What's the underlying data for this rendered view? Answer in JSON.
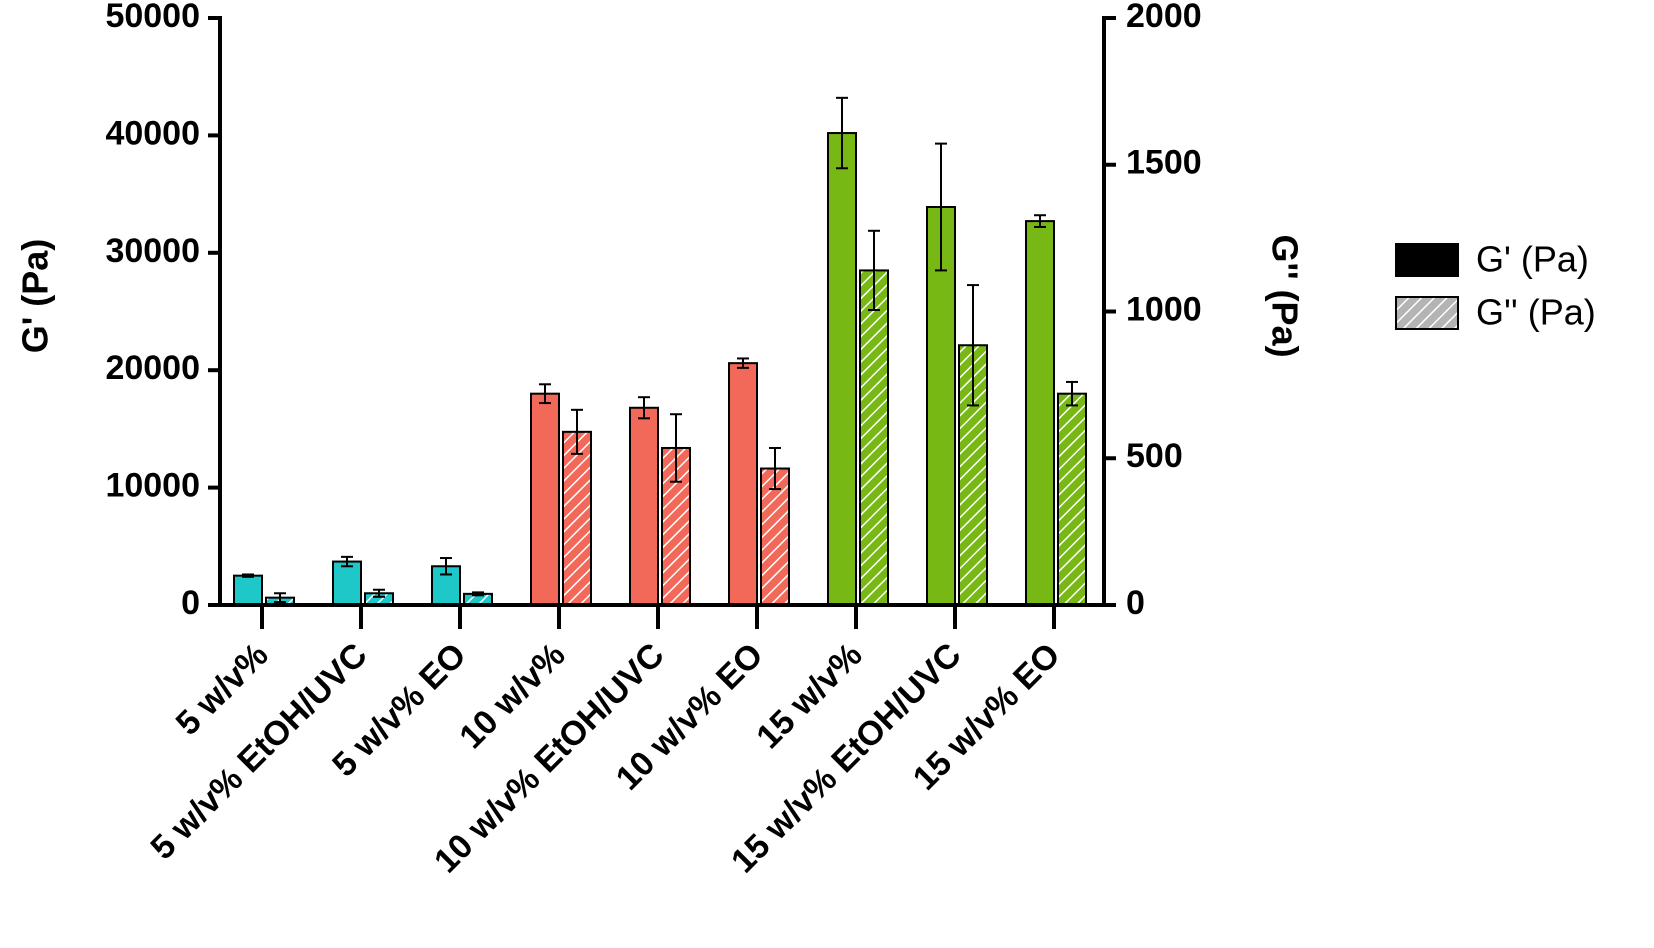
{
  "chart_data": {
    "type": "bar",
    "title": "",
    "xlabel": "",
    "ylabel_left": "G' (Pa)",
    "ylabel_right": "G'' (Pa)",
    "ylim_left": [
      0,
      50000
    ],
    "ylim_right": [
      0,
      2000
    ],
    "yticks_left": [
      "0",
      "10000",
      "20000",
      "30000",
      "40000",
      "50000"
    ],
    "yticks_right": [
      "0",
      "500",
      "1000",
      "1500",
      "2000"
    ],
    "categories": [
      "5 w/v%",
      "5 w/v% EtOH/UVC",
      "5 w/v% EO",
      "10 w/v%",
      "10 w/v% EtOH/UVC",
      "10 w/v% EO",
      "15 w/v%",
      "15 w/v% EtOH/UVC",
      "15 w/v% EO"
    ],
    "category_colors": [
      "#1ec8c8",
      "#1ec8c8",
      "#1ec8c8",
      "#f2695a",
      "#f2695a",
      "#f2695a",
      "#78b814",
      "#78b814",
      "#78b814"
    ],
    "series": [
      {
        "name": "G' (Pa)",
        "axis": "left",
        "pattern": "solid",
        "values": [
          2500,
          3700,
          3300,
          18000,
          16800,
          20600,
          40200,
          33900,
          32700
        ],
        "errors": [
          100,
          400,
          700,
          800,
          900,
          400,
          3000,
          5400,
          500
        ]
      },
      {
        "name": "G'' (Pa)",
        "axis": "right",
        "pattern": "hatched",
        "values": [
          25,
          40,
          38,
          590,
          535,
          465,
          1140,
          885,
          720
        ],
        "errors": [
          15,
          12,
          5,
          75,
          115,
          70,
          135,
          205,
          40
        ]
      }
    ],
    "legend": {
      "position": "right",
      "entries": [
        "G' (Pa)",
        "G'' (Pa)"
      ]
    }
  }
}
